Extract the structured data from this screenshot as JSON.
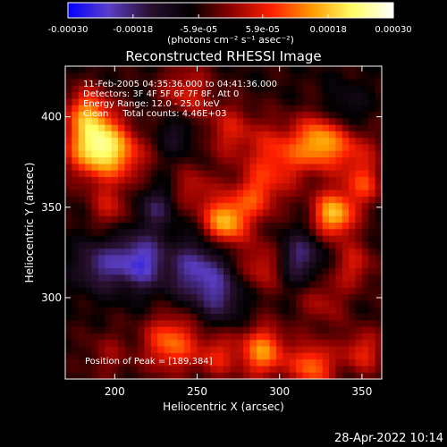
{
  "colorbar": {
    "ticks": [
      "-0.00030",
      "-0.00018",
      "-5.9e-05",
      "5.9e-05",
      "0.00018",
      "0.00030"
    ],
    "tick_values": [
      -0.0003,
      -0.00018,
      -5.9e-05,
      5.9e-05,
      0.00018,
      0.0003
    ],
    "range": [
      -0.0003,
      0.0003
    ],
    "unit_text": "(photons cm⁻² s⁻¹ asec⁻²)",
    "colors": [
      "#0000ff",
      "#5a3ec8",
      "#2a1030",
      "#000000",
      "#8b0000",
      "#ff2000",
      "#ff9a00",
      "#ffff66",
      "#ffffff"
    ]
  },
  "chart_data": {
    "type": "heatmap",
    "title": "Reconstructed RHESSI Image",
    "xlabel": "Heliocentric X (arcsec)",
    "ylabel": "Heliocentric Y (arcsec)",
    "xlim": [
      170,
      362
    ],
    "ylim": [
      255,
      428
    ],
    "xticks": [
      200,
      250,
      300,
      350
    ],
    "yticks": [
      300,
      350,
      400
    ],
    "info_lines": [
      "11-Feb-2005 04:35:36.000 to 04:41:36.000",
      "Detectors: 3F 4F 5F 6F 7F 8F, Att 0",
      "Energy Range: 12.0 - 25.0 keV",
      "Clean     Total counts: 4.46E+03"
    ],
    "peak_text": "Position of Peak = [189,384]",
    "sources": [
      {
        "x": 189,
        "y": 384,
        "amp": 0.0003,
        "s": 12
      },
      {
        "x": 183,
        "y": 404,
        "amp": 0.00014,
        "s": 9
      },
      {
        "x": 208,
        "y": 378,
        "amp": 0.0001,
        "s": 10
      },
      {
        "x": 197,
        "y": 350,
        "amp": 9e-05,
        "s": 9
      },
      {
        "x": 243,
        "y": 413,
        "amp": 0.00011,
        "s": 11
      },
      {
        "x": 270,
        "y": 392,
        "amp": 0.0001,
        "s": 11
      },
      {
        "x": 300,
        "y": 378,
        "amp": 0.00014,
        "s": 13
      },
      {
        "x": 325,
        "y": 386,
        "amp": 0.00021,
        "s": 10
      },
      {
        "x": 346,
        "y": 380,
        "amp": 0.0001,
        "s": 10
      },
      {
        "x": 333,
        "y": 346,
        "amp": 0.00024,
        "s": 9
      },
      {
        "x": 351,
        "y": 362,
        "amp": 0.00012,
        "s": 8
      },
      {
        "x": 267,
        "y": 342,
        "amp": 0.00023,
        "s": 9
      },
      {
        "x": 285,
        "y": 356,
        "amp": 0.00013,
        "s": 10
      },
      {
        "x": 248,
        "y": 360,
        "amp": 9e-05,
        "s": 9
      },
      {
        "x": 290,
        "y": 318,
        "amp": 0.00011,
        "s": 10
      },
      {
        "x": 326,
        "y": 298,
        "amp": 8e-05,
        "s": 10
      },
      {
        "x": 345,
        "y": 318,
        "amp": 0.0001,
        "s": 9
      },
      {
        "x": 234,
        "y": 275,
        "amp": 0.00018,
        "s": 11
      },
      {
        "x": 290,
        "y": 270,
        "amp": 0.0002,
        "s": 10
      },
      {
        "x": 320,
        "y": 262,
        "amp": 0.00018,
        "s": 9
      },
      {
        "x": 350,
        "y": 270,
        "amp": 0.00012,
        "s": 9
      },
      {
        "x": 262,
        "y": 268,
        "amp": 0.00011,
        "s": 9
      },
      {
        "x": 196,
        "y": 268,
        "amp": 6e-05,
        "s": 10
      },
      {
        "x": 215,
        "y": 320,
        "amp": -0.00018,
        "s": 11
      },
      {
        "x": 250,
        "y": 315,
        "amp": -0.00015,
        "s": 12
      },
      {
        "x": 225,
        "y": 350,
        "amp": -0.0001,
        "s": 8
      },
      {
        "x": 190,
        "y": 318,
        "amp": -0.00012,
        "s": 10
      },
      {
        "x": 312,
        "y": 322,
        "amp": -0.00013,
        "s": 10
      },
      {
        "x": 265,
        "y": 300,
        "amp": -0.0001,
        "s": 10
      },
      {
        "x": 340,
        "y": 405,
        "amp": -6e-05,
        "s": 9
      },
      {
        "x": 238,
        "y": 392,
        "amp": -7e-05,
        "s": 9
      }
    ]
  },
  "footer": {
    "timestamp": "28-Apr-2022 10:14"
  }
}
